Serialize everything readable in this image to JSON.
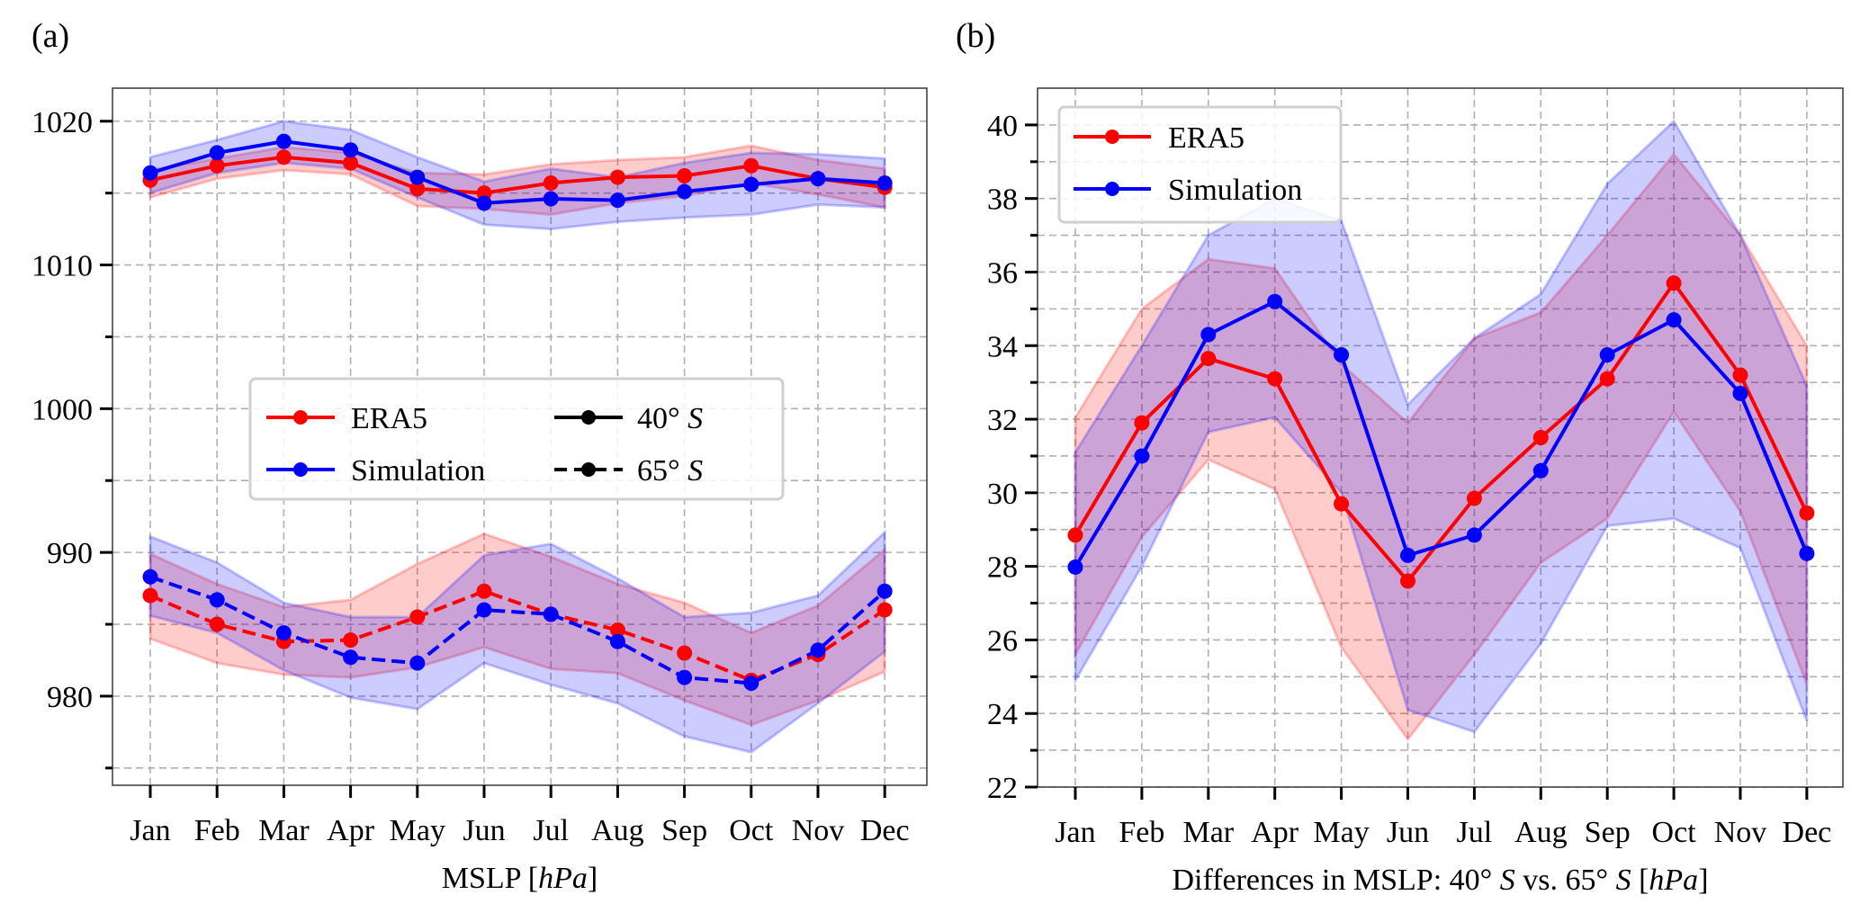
{
  "chart_data": [
    {
      "type": "line",
      "panel_label": "(a)",
      "title": "",
      "xlabel": "MSLP [hPa]",
      "xlabel_parts": [
        {
          "t": "MSLP ["
        },
        {
          "t": "hPa",
          "italic": true
        },
        {
          "t": "]"
        }
      ],
      "ylabel": "",
      "categories": [
        "Jan",
        "Feb",
        "Mar",
        "Apr",
        "May",
        "Jun",
        "Jul",
        "Aug",
        "Sep",
        "Oct",
        "Nov",
        "Dec"
      ],
      "ylim": [
        973.8,
        1022.3
      ],
      "yticks": [
        980,
        990,
        1000,
        1010,
        1020
      ],
      "yticks_minor": [
        975,
        985,
        995,
        1005,
        1015
      ],
      "grid": true,
      "legend": {
        "placement": "center",
        "entries": [
          {
            "label": "ERA5",
            "color": "#ff0000",
            "style": "solid"
          },
          {
            "label": "Simulation",
            "color": "#0000ff",
            "style": "solid"
          },
          {
            "label_parts": [
              {
                "t": "40° "
              },
              {
                "t": "S",
                "italic": true
              }
            ],
            "label": "40° S",
            "color": "#000000",
            "style": "solid"
          },
          {
            "label_parts": [
              {
                "t": "65° "
              },
              {
                "t": "S",
                "italic": true
              }
            ],
            "label": "65° S",
            "color": "#000000",
            "style": "dashed"
          }
        ]
      },
      "series": [
        {
          "name": "ERA5 40° S",
          "color": "#ff0000",
          "style": "solid",
          "values": [
            1015.9,
            1016.9,
            1017.5,
            1017.1,
            1015.3,
            1015.0,
            1015.7,
            1016.1,
            1016.2,
            1016.9,
            1016.0,
            1015.4
          ],
          "upper": [
            1016.6,
            1017.4,
            1018.2,
            1017.8,
            1016.4,
            1016.3,
            1017.0,
            1017.3,
            1017.5,
            1018.3,
            1017.3,
            1016.7
          ],
          "lower": [
            1014.7,
            1016.0,
            1016.6,
            1016.3,
            1014.1,
            1013.9,
            1013.5,
            1014.3,
            1014.8,
            1015.7,
            1014.9,
            1014.0
          ]
        },
        {
          "name": "Simulation 40° S",
          "color": "#0000ff",
          "style": "solid",
          "values": [
            1016.4,
            1017.8,
            1018.6,
            1018.0,
            1016.1,
            1014.3,
            1014.6,
            1014.5,
            1015.1,
            1015.6,
            1016.0,
            1015.7
          ],
          "upper": [
            1017.5,
            1018.7,
            1020.0,
            1019.4,
            1017.5,
            1015.8,
            1016.7,
            1016.1,
            1017.1,
            1017.8,
            1017.7,
            1017.4
          ],
          "lower": [
            1015.0,
            1016.4,
            1017.1,
            1016.7,
            1014.7,
            1012.8,
            1012.5,
            1013.0,
            1013.3,
            1013.5,
            1014.2,
            1014.0
          ]
        },
        {
          "name": "ERA5 65° S",
          "color": "#ff0000",
          "style": "dashed",
          "values": [
            987.0,
            985.0,
            983.8,
            983.9,
            985.5,
            987.3,
            985.7,
            984.6,
            983.0,
            981.1,
            982.9,
            986.0
          ],
          "upper": [
            989.9,
            987.8,
            986.2,
            986.7,
            989.2,
            991.3,
            989.7,
            987.8,
            986.5,
            984.4,
            986.3,
            990.2
          ],
          "lower": [
            984.0,
            982.3,
            981.5,
            981.3,
            982.0,
            983.4,
            981.9,
            981.6,
            979.7,
            978.0,
            979.7,
            981.7
          ]
        },
        {
          "name": "Simulation 65° S",
          "color": "#0000ff",
          "style": "dashed",
          "values": [
            988.3,
            986.7,
            984.4,
            982.7,
            982.3,
            986.0,
            985.7,
            983.8,
            981.3,
            980.9,
            983.2,
            987.3
          ],
          "upper": [
            991.1,
            989.3,
            986.5,
            985.5,
            985.5,
            989.8,
            990.6,
            988.2,
            985.5,
            985.8,
            987.0,
            991.4
          ],
          "lower": [
            985.6,
            984.4,
            981.8,
            979.9,
            979.1,
            982.3,
            980.8,
            979.5,
            977.2,
            976.1,
            979.5,
            983.1
          ]
        }
      ]
    },
    {
      "type": "line",
      "panel_label": "(b)",
      "title": "",
      "xlabel": "Differences in MSLP: 40° S vs. 65° S [hPa]",
      "xlabel_parts": [
        {
          "t": "Differences in MSLP: 40° "
        },
        {
          "t": "S",
          "italic": true
        },
        {
          "t": " vs. 65° "
        },
        {
          "t": "S",
          "italic": true
        },
        {
          "t": " ["
        },
        {
          "t": "hPa",
          "italic": true
        },
        {
          "t": "]"
        }
      ],
      "ylabel": "",
      "categories": [
        "Jan",
        "Feb",
        "Mar",
        "Apr",
        "May",
        "Jun",
        "Jul",
        "Aug",
        "Sep",
        "Oct",
        "Nov",
        "Dec"
      ],
      "ylim": [
        22,
        41
      ],
      "yticks": [
        22,
        24,
        26,
        28,
        30,
        32,
        34,
        36,
        38,
        40
      ],
      "yticks_minor": [
        23,
        25,
        27,
        29,
        31,
        33,
        35,
        37,
        39
      ],
      "grid": true,
      "legend": {
        "placement": "top-left",
        "entries": [
          {
            "label": "ERA5",
            "color": "#ff0000",
            "style": "solid"
          },
          {
            "label": "Simulation",
            "color": "#0000ff",
            "style": "solid"
          }
        ]
      },
      "series": [
        {
          "name": "ERA5",
          "color": "#ff0000",
          "style": "solid",
          "values": [
            28.85,
            31.9,
            33.65,
            33.1,
            29.7,
            27.6,
            29.85,
            31.5,
            33.1,
            35.7,
            33.2,
            29.45
          ],
          "upper": [
            32.05,
            35.0,
            36.35,
            36.1,
            33.5,
            31.9,
            34.2,
            34.9,
            37.0,
            39.2,
            37.0,
            34.0
          ],
          "lower": [
            25.6,
            28.8,
            30.9,
            30.1,
            25.8,
            23.3,
            25.6,
            28.1,
            29.3,
            32.2,
            29.5,
            24.8
          ]
        },
        {
          "name": "Simulation",
          "color": "#0000ff",
          "style": "solid",
          "values": [
            27.98,
            31.0,
            34.3,
            35.2,
            33.75,
            28.3,
            28.85,
            30.6,
            33.75,
            34.7,
            32.7,
            28.35
          ],
          "upper": [
            31.1,
            34.0,
            37.0,
            38.0,
            37.4,
            32.4,
            34.2,
            35.4,
            38.4,
            40.1,
            37.0,
            32.9
          ],
          "lower": [
            24.9,
            28.0,
            31.65,
            32.05,
            30.0,
            24.1,
            23.5,
            25.9,
            29.1,
            29.3,
            28.5,
            23.8
          ]
        }
      ]
    }
  ]
}
